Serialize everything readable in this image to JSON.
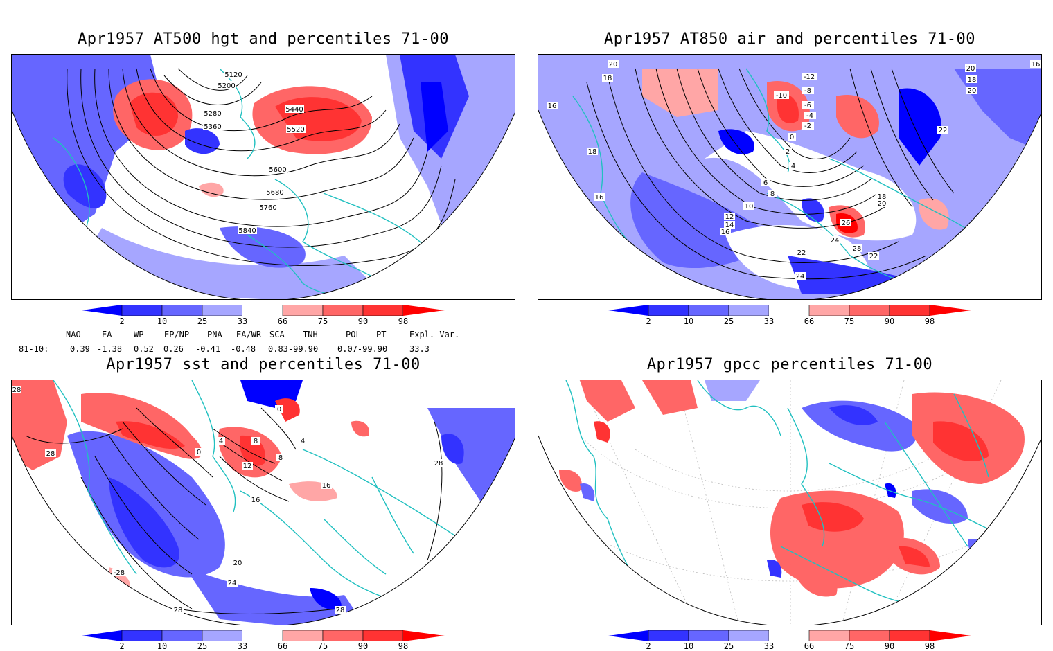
{
  "panels": [
    {
      "id": "hgt500",
      "title": "Apr1957 AT500 hgt and percentiles 71-00",
      "contour_labels": [
        "5120",
        "5200",
        "5280",
        "5360",
        "5440",
        "5520",
        "5600",
        "5680",
        "5760",
        "5840"
      ]
    },
    {
      "id": "air850",
      "title": "Apr1957 AT850 air and percentiles 71-00",
      "contour_labels": [
        "20",
        "18",
        "16",
        "18",
        "16",
        "-12",
        "-10",
        "-8",
        "-6",
        "-4",
        "-2",
        "0",
        "2",
        "4",
        "6",
        "8",
        "10",
        "12",
        "14",
        "16",
        "18",
        "20",
        "22",
        "24",
        "26",
        "28",
        "22",
        "24",
        "20",
        "18",
        "20",
        "22",
        "16"
      ]
    },
    {
      "id": "sst",
      "title": "Apr1957 sst and percentiles 71-00",
      "contour_labels": [
        "28",
        "28",
        "0",
        "4",
        "8",
        "12",
        "16",
        "20",
        "24",
        "28",
        "28",
        "28",
        "16",
        "8",
        "4",
        "0",
        "-28"
      ]
    },
    {
      "id": "gpcc",
      "title": "Apr1957 gpcc percentiles 71-00",
      "contour_labels": []
    }
  ],
  "colorbar": {
    "labels": [
      "2",
      "10",
      "25",
      "33",
      "66",
      "75",
      "90",
      "98"
    ],
    "colors": [
      "#0000ff",
      "#3333ff",
      "#6666ff",
      "#a6a6ff",
      "#ffffff",
      "#ffa6a6",
      "#ff6666",
      "#ff3333",
      "#ff0000"
    ]
  },
  "indices": {
    "headers": [
      "NAO",
      "EA",
      "WP",
      "EP/NP",
      "PNA",
      "EA/WR",
      "SCA",
      "TNH",
      "POL",
      "PT",
      "Expl. Var."
    ],
    "row_label": "81-10:",
    "values": [
      "0.39",
      "-1.38",
      "0.52",
      "0.26",
      "-0.41",
      "-0.48",
      "0.83-99.90",
      "",
      "0.07-99.90",
      "",
      "33.3"
    ]
  }
}
